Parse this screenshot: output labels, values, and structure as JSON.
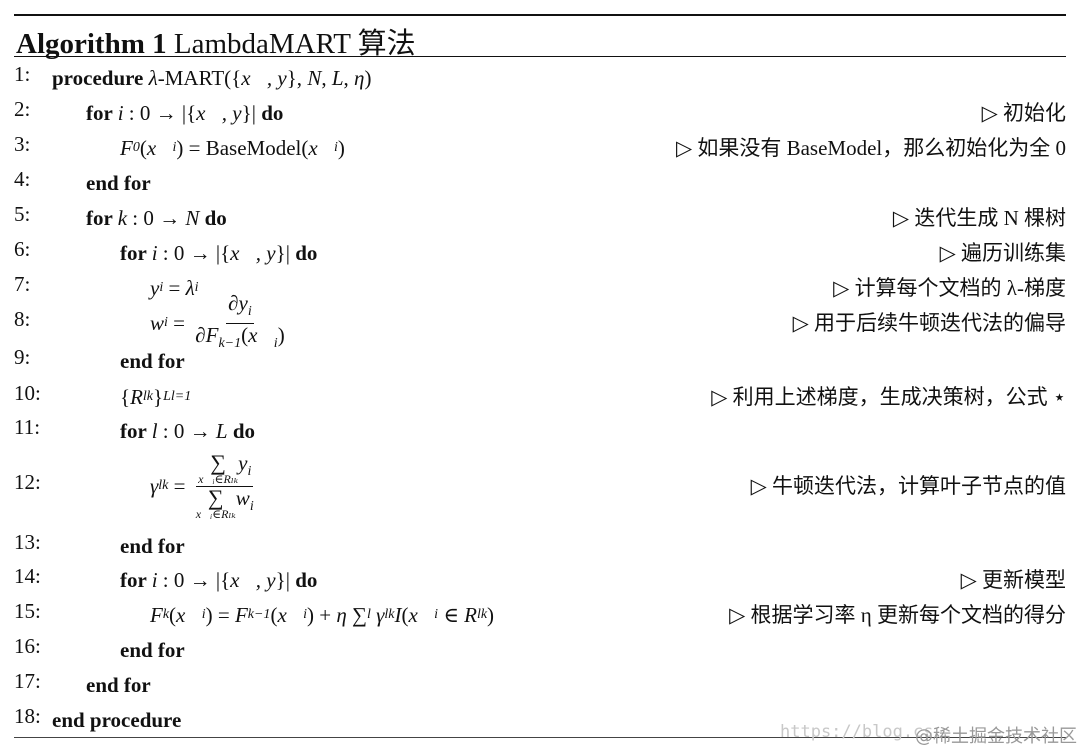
{
  "title": {
    "label": "Algorithm 1",
    "name": "LambdaMART 算法"
  },
  "comment_marker": "▷",
  "lines": [
    {
      "n": "1:",
      "indent": 0,
      "segs": [
        {
          "k": "kw",
          "t": "procedure "
        },
        {
          "k": "m",
          "t": "λ"
        },
        {
          "k": "r",
          "t": "-MART({"
        },
        {
          "k": "m",
          "t": "x⃗, y"
        },
        {
          "k": "r",
          "t": "}, "
        },
        {
          "k": "m",
          "t": "N"
        },
        {
          "k": "r",
          "t": ", "
        },
        {
          "k": "m",
          "t": "L"
        },
        {
          "k": "r",
          "t": ", "
        },
        {
          "k": "m",
          "t": "η"
        },
        {
          "k": "r",
          "t": ")"
        }
      ],
      "c": ""
    },
    {
      "n": "2:",
      "indent": 1,
      "segs": [
        {
          "k": "kw",
          "t": "for "
        },
        {
          "k": "m",
          "t": "i"
        },
        {
          "k": "r",
          "t": " : 0 → |{"
        },
        {
          "k": "m",
          "t": "x⃗, y"
        },
        {
          "k": "r",
          "t": "}| "
        },
        {
          "k": "kw",
          "t": "do"
        }
      ],
      "c": "初始化"
    },
    {
      "n": "3:",
      "indent": 2,
      "segs": [
        {
          "k": "m",
          "t": "F"
        },
        {
          "k": "sub",
          "t": "0"
        },
        {
          "k": "r",
          "t": "("
        },
        {
          "k": "m",
          "t": "x⃗"
        },
        {
          "k": "sub",
          "t": "i"
        },
        {
          "k": "r",
          "t": ") = BaseModel("
        },
        {
          "k": "m",
          "t": "x⃗"
        },
        {
          "k": "sub",
          "t": "i"
        },
        {
          "k": "r",
          "t": ")"
        }
      ],
      "c": "如果没有 BaseModel，那么初始化为全 0"
    },
    {
      "n": "4:",
      "indent": 1,
      "segs": [
        {
          "k": "kw",
          "t": "end for"
        }
      ],
      "c": ""
    },
    {
      "n": "5:",
      "indent": 1,
      "segs": [
        {
          "k": "kw",
          "t": "for "
        },
        {
          "k": "m",
          "t": "k"
        },
        {
          "k": "r",
          "t": " : 0 → "
        },
        {
          "k": "m",
          "t": "N"
        },
        {
          "k": "kw",
          "t": " do"
        }
      ],
      "c": "迭代生成 N 棵树"
    },
    {
      "n": "6:",
      "indent": 2,
      "segs": [
        {
          "k": "kw",
          "t": "for "
        },
        {
          "k": "m",
          "t": "i"
        },
        {
          "k": "r",
          "t": " : 0 → |{"
        },
        {
          "k": "m",
          "t": "x⃗, y"
        },
        {
          "k": "r",
          "t": "}| "
        },
        {
          "k": "kw",
          "t": "do"
        }
      ],
      "c": "遍历训练集"
    },
    {
      "n": "7:",
      "indent": 3,
      "segs": [
        {
          "k": "m",
          "t": "y"
        },
        {
          "k": "sub",
          "t": "i"
        },
        {
          "k": "r",
          "t": " = "
        },
        {
          "k": "m",
          "t": "λ"
        },
        {
          "k": "sub",
          "t": "i"
        }
      ],
      "c": "计算每个文档的 λ-梯度"
    },
    {
      "n": "8:",
      "indent": 3,
      "segs": [
        {
          "k": "m",
          "t": "w"
        },
        {
          "k": "sub",
          "t": "i"
        },
        {
          "k": "r",
          "t": " = "
        },
        {
          "k": "frac",
          "num": [
            {
              "k": "m",
              "t": "∂y"
            },
            {
              "k": "sub",
              "t": "i"
            }
          ],
          "den": [
            {
              "k": "m",
              "t": "∂F"
            },
            {
              "k": "sub",
              "t": "k−1"
            },
            {
              "k": "r",
              "t": "("
            },
            {
              "k": "m",
              "t": "x⃗"
            },
            {
              "k": "sub",
              "t": "i"
            },
            {
              "k": "r",
              "t": ")"
            }
          ]
        }
      ],
      "c": "用于后续牛顿迭代法的偏导"
    },
    {
      "n": "9:",
      "indent": 2,
      "segs": [
        {
          "k": "kw",
          "t": "end for"
        }
      ],
      "c": ""
    },
    {
      "n": "10:",
      "indent": 2,
      "segs": [
        {
          "k": "r",
          "t": "{"
        },
        {
          "k": "m",
          "t": "R"
        },
        {
          "k": "sub",
          "t": "lk"
        },
        {
          "k": "r",
          "t": "}"
        },
        {
          "k": "sup",
          "t": "L"
        },
        {
          "k": "sub",
          "t": "l=1"
        }
      ],
      "c": "利用上述梯度，生成决策树，公式 ⋆"
    },
    {
      "n": "11:",
      "indent": 2,
      "segs": [
        {
          "k": "kw",
          "t": "for "
        },
        {
          "k": "m",
          "t": "l"
        },
        {
          "k": "r",
          "t": " : 0 → "
        },
        {
          "k": "m",
          "t": "L"
        },
        {
          "k": "kw",
          "t": " do"
        }
      ],
      "c": ""
    },
    {
      "n": "12:",
      "indent": 3,
      "segs": [
        {
          "k": "m",
          "t": "γ"
        },
        {
          "k": "sub",
          "t": "lk"
        },
        {
          "k": "r",
          "t": " = "
        },
        {
          "k": "frac",
          "num": [
            {
              "k": "sum",
              "t": "x⃗ᵢ∈Rₗₖ"
            },
            {
              "k": "m",
              "t": "y"
            },
            {
              "k": "sub",
              "t": "i"
            }
          ],
          "den": [
            {
              "k": "sum",
              "t": "x⃗ᵢ∈Rₗₖ"
            },
            {
              "k": "m",
              "t": "w"
            },
            {
              "k": "sub",
              "t": "i"
            }
          ]
        }
      ],
      "c": "牛顿迭代法，计算叶子节点的值"
    },
    {
      "n": "13:",
      "indent": 2,
      "segs": [
        {
          "k": "kw",
          "t": "end for"
        }
      ],
      "c": ""
    },
    {
      "n": "14:",
      "indent": 2,
      "segs": [
        {
          "k": "kw",
          "t": "for "
        },
        {
          "k": "m",
          "t": "i"
        },
        {
          "k": "r",
          "t": " : 0 → |{"
        },
        {
          "k": "m",
          "t": "x⃗, y"
        },
        {
          "k": "r",
          "t": "}| "
        },
        {
          "k": "kw",
          "t": "do"
        }
      ],
      "c": "更新模型"
    },
    {
      "n": "15:",
      "indent": 3,
      "segs": [
        {
          "k": "m",
          "t": "F"
        },
        {
          "k": "sub",
          "t": "k"
        },
        {
          "k": "r",
          "t": "("
        },
        {
          "k": "m",
          "t": "x⃗"
        },
        {
          "k": "sub",
          "t": "i"
        },
        {
          "k": "r",
          "t": ") = "
        },
        {
          "k": "m",
          "t": "F"
        },
        {
          "k": "sub",
          "t": "k−1"
        },
        {
          "k": "r",
          "t": "("
        },
        {
          "k": "m",
          "t": "x⃗"
        },
        {
          "k": "sub",
          "t": "i"
        },
        {
          "k": "r",
          "t": ") + "
        },
        {
          "k": "m",
          "t": "η"
        },
        {
          "k": "r",
          "t": " ∑"
        },
        {
          "k": "sub",
          "t": "l"
        },
        {
          "k": "r",
          "t": " "
        },
        {
          "k": "m",
          "t": "γ"
        },
        {
          "k": "sub",
          "t": "lk"
        },
        {
          "k": "m",
          "t": "I"
        },
        {
          "k": "r",
          "t": "("
        },
        {
          "k": "m",
          "t": "x⃗"
        },
        {
          "k": "sub",
          "t": "i"
        },
        {
          "k": "r",
          "t": " ∈ "
        },
        {
          "k": "m",
          "t": "R"
        },
        {
          "k": "sub",
          "t": "lk"
        },
        {
          "k": "r",
          "t": ")"
        }
      ],
      "c": "根据学习率 η 更新每个文档的得分"
    },
    {
      "n": "16:",
      "indent": 2,
      "segs": [
        {
          "k": "kw",
          "t": "end for"
        }
      ],
      "c": ""
    },
    {
      "n": "17:",
      "indent": 1,
      "segs": [
        {
          "k": "kw",
          "t": "end for"
        }
      ],
      "c": ""
    },
    {
      "n": "18:",
      "indent": 0,
      "segs": [
        {
          "k": "kw",
          "t": "end procedure"
        }
      ],
      "c": ""
    }
  ],
  "watermark": {
    "url": "https://blog.cs",
    "source": "@稀土掘金技术社区"
  }
}
